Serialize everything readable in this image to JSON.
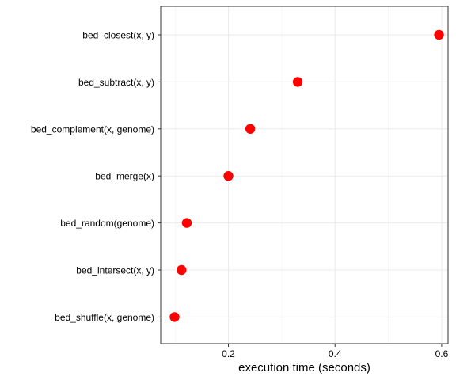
{
  "chart_data": {
    "type": "scatter",
    "title": "",
    "xlabel": "execution time (seconds)",
    "ylabel": "",
    "categories": [
      "bed_closest(x, y)",
      "bed_subtract(x, y)",
      "bed_complement(x, genome)",
      "bed_merge(x)",
      "bed_random(genome)",
      "bed_intersect(x, y)",
      "bed_shuffle(x, genome)"
    ],
    "values": [
      0.595,
      0.33,
      0.241,
      0.2,
      0.122,
      0.112,
      0.099
    ],
    "x_ticks": [
      0.2,
      0.4,
      0.6
    ],
    "x_tick_labels": [
      "0.2",
      "0.4",
      "0.6"
    ],
    "xlim": [
      0.073,
      0.612
    ],
    "grid": true,
    "point_color": "#ff0000",
    "legend": "none"
  }
}
